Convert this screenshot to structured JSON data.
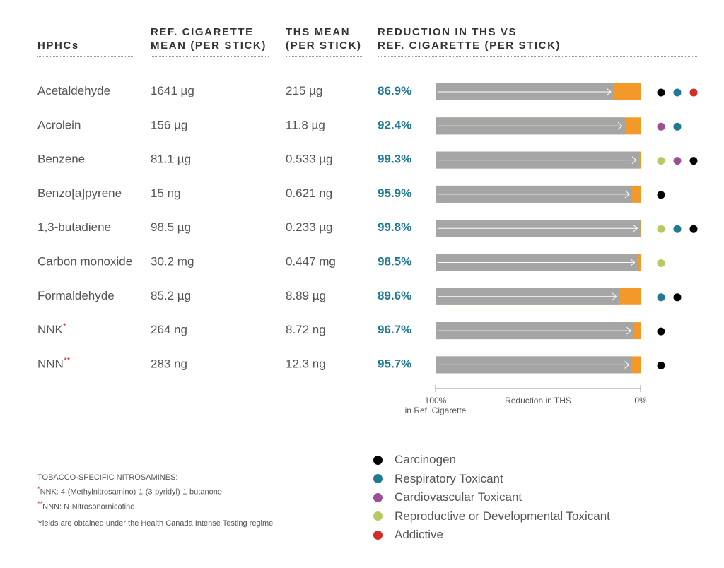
{
  "headers": {
    "col1": "HPHCs",
    "col2_line1": "REF. CIGARETTE",
    "col2_line2": "MEAN (PER STICK)",
    "col3_line1": "THS MEAN",
    "col3_line2": "(PER STICK)",
    "col4_line1": "REDUCTION IN THS VS",
    "col4_line2": "REF. CIGARETTE (PER STICK)"
  },
  "colors": {
    "bar_gray": "#a5a5a5",
    "bar_orange": "#f3992a",
    "carcinogen": "#000000",
    "respiratory": "#1f7a93",
    "cardiovascular": "#9b4f96",
    "reproductive": "#b5cb61",
    "addictive": "#d62b2b"
  },
  "chart_data": {
    "type": "bar",
    "orientation": "horizontal",
    "categories": [
      "Acetaldehyde",
      "Acrolein",
      "Benzene",
      "Benzo[a]pyrene",
      "1,3-butadiene",
      "Carbon monoxide",
      "Formaldehyde",
      "NNK",
      "NNN"
    ],
    "category_marks": [
      "",
      "",
      "",
      "",
      "",
      "",
      "",
      "*",
      "**"
    ],
    "ref_cigarette": [
      "1641 µg",
      "156 µg",
      "81.1 µg",
      "15 ng",
      "98.5 µg",
      "30.2 mg",
      "85.2 µg",
      "264 ng",
      "283 ng"
    ],
    "ths_mean": [
      "215 µg",
      "11.8 µg",
      "0.533 µg",
      "0.621 ng",
      "0.233 µg",
      "0.447 mg",
      "8.89 µg",
      "8.72 ng",
      "12.3 ng"
    ],
    "reduction_labels": [
      "86.9%",
      "92.4%",
      "99.3%",
      "95.9%",
      "99.8%",
      "98.5%",
      "89.6%",
      "96.7%",
      "95.7%"
    ],
    "values": [
      86.9,
      92.4,
      99.3,
      95.9,
      99.8,
      98.5,
      89.6,
      96.7,
      95.7
    ],
    "xlim": [
      100,
      0
    ],
    "axis_left_label_line1": "100%",
    "axis_left_label_line2": "in Ref. Cigarette",
    "axis_center_label": "Reduction in THS",
    "axis_right_label": "0%",
    "toxicity": [
      [
        "carcinogen",
        "respiratory",
        "addictive"
      ],
      [
        "cardiovascular",
        "respiratory"
      ],
      [
        "reproductive",
        "cardiovascular",
        "carcinogen"
      ],
      [
        "carcinogen"
      ],
      [
        "reproductive",
        "respiratory",
        "carcinogen"
      ],
      [
        "reproductive"
      ],
      [
        "respiratory",
        "carcinogen"
      ],
      [
        "carcinogen"
      ],
      [
        "carcinogen"
      ]
    ]
  },
  "legend": [
    {
      "key": "carcinogen",
      "label": "Carcinogen"
    },
    {
      "key": "respiratory",
      "label": "Respiratory Toxicant"
    },
    {
      "key": "cardiovascular",
      "label": "Cardiovascular Toxicant"
    },
    {
      "key": "reproductive",
      "label": "Reproductive or Developmental Toxicant"
    },
    {
      "key": "addictive",
      "label": "Addictive"
    }
  ],
  "footnotes": {
    "heading": "TOBACCO-SPECIFIC NITROSAMINES:",
    "nnk_mark": "*",
    "nnk": "NNK: 4-(Methylnitrosamino)-1-(3-pyridyl)-1-butanone",
    "nnn_mark": "**",
    "nnn": "NNN: N-Nitrosonornicotine",
    "yields": "Yields are obtained under the Health Canada Intense Testing regime"
  }
}
